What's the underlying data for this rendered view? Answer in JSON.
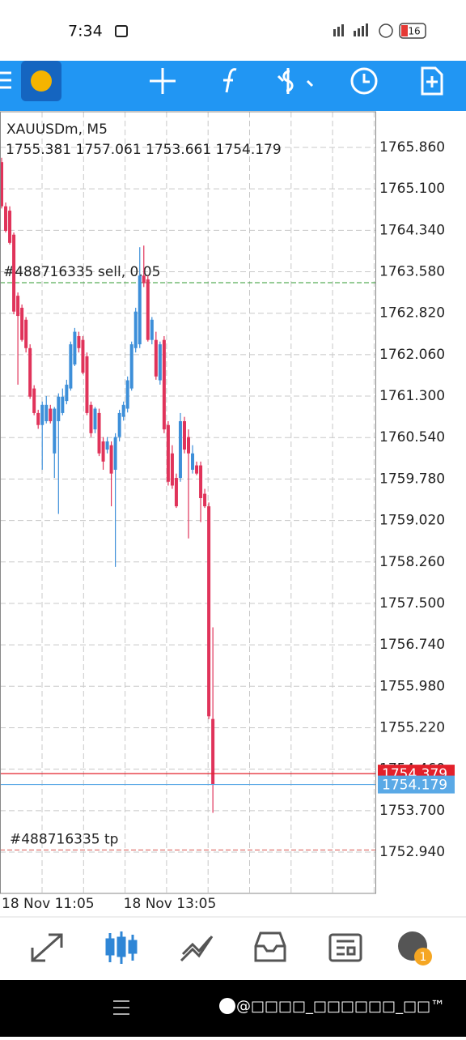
{
  "status_bar": {
    "time": "7:34",
    "battery": "16"
  },
  "notification_badge": "1",
  "watermark": "@□□□□_□□□□□□_□□™",
  "chart_data": {
    "type": "candlestick",
    "title": "XAUUSDm, M5",
    "subtitle": "1755.381 1757.061 1753.661 1754.179",
    "bull_color": "#3d8fd9",
    "bear_color": "#e0335a",
    "grid": true,
    "ylim": [
      1752.183,
      1766.513
    ],
    "yticks": [
      {
        "value": 1765.86,
        "label": "1765.860"
      },
      {
        "value": 1765.1,
        "label": "1765.100"
      },
      {
        "value": 1764.34,
        "label": "1764.340"
      },
      {
        "value": 1763.58,
        "label": "1763.580"
      },
      {
        "value": 1762.82,
        "label": "1762.820"
      },
      {
        "value": 1762.06,
        "label": "1762.060"
      },
      {
        "value": 1761.3,
        "label": "1761.300"
      },
      {
        "value": 1760.54,
        "label": "1760.540"
      },
      {
        "value": 1759.78,
        "label": "1759.780"
      },
      {
        "value": 1759.02,
        "label": "1759.020"
      },
      {
        "value": 1758.26,
        "label": "1758.260"
      },
      {
        "value": 1757.5,
        "label": "1757.500"
      },
      {
        "value": 1756.74,
        "label": "1756.740"
      },
      {
        "value": 1755.98,
        "label": "1755.980"
      },
      {
        "value": 1755.22,
        "label": "1755.220"
      },
      {
        "value": 1754.46,
        "label": "1754.460"
      },
      {
        "value": 1753.7,
        "label": "1753.700"
      },
      {
        "value": 1752.94,
        "label": "1752.940"
      }
    ],
    "xlim": [
      -0.4,
      92.2
    ],
    "xticks": [
      {
        "value": 0,
        "label": "18 Nov 11:05"
      },
      {
        "value": 30,
        "label": "18 Nov 13:05"
      }
    ],
    "candles": [
      [
        1765.59,
        1765.67,
        1764.74,
        1764.78
      ],
      [
        1764.78,
        1764.85,
        1764.3,
        1764.33
      ],
      [
        1764.7,
        1764.78,
        1764.08,
        1764.11
      ],
      [
        1764.26,
        1764.3,
        1762.8,
        1762.85
      ],
      [
        1763.14,
        1763.2,
        1761.51,
        1762.77
      ],
      [
        1762.92,
        1762.98,
        1762.3,
        1762.33
      ],
      [
        1762.7,
        1762.75,
        1762.1,
        1762.18
      ],
      [
        1762.18,
        1762.25,
        1761.25,
        1761.29
      ],
      [
        1761.44,
        1761.5,
        1760.95,
        1760.99
      ],
      [
        1760.99,
        1761.05,
        1760.7,
        1760.77
      ],
      [
        1760.77,
        1761.2,
        1759.95,
        1761.14
      ],
      [
        1760.84,
        1761.3,
        1760.8,
        1761.14
      ],
      [
        1761.07,
        1761.14,
        1760.8,
        1760.84
      ],
      [
        1760.25,
        1761.1,
        1759.8,
        1761.07
      ],
      [
        1760.84,
        1761.35,
        1759.14,
        1761.29
      ],
      [
        1760.99,
        1761.44,
        1760.95,
        1761.29
      ],
      [
        1761.21,
        1761.6,
        1761.15,
        1761.51
      ],
      [
        1761.44,
        1762.3,
        1761.4,
        1762.25
      ],
      [
        1761.88,
        1762.55,
        1761.85,
        1762.48
      ],
      [
        1762.4,
        1762.48,
        1762.1,
        1762.18
      ],
      [
        1762.33,
        1762.4,
        1761.7,
        1761.73
      ],
      [
        1762.03,
        1762.1,
        1760.95,
        1760.99
      ],
      [
        1761.14,
        1761.2,
        1760.55,
        1760.62
      ],
      [
        1760.69,
        1761.1,
        1760.62,
        1761.07
      ],
      [
        1760.99,
        1761.07,
        1760.2,
        1760.25
      ],
      [
        1760.47,
        1760.55,
        1759.95,
        1760.1
      ],
      [
        1760.32,
        1760.55,
        1760.25,
        1760.47
      ],
      [
        1760.4,
        1760.47,
        1759.28,
        1759.88
      ],
      [
        1759.95,
        1760.62,
        1758.17,
        1760.55
      ],
      [
        1760.55,
        1761.05,
        1760.47,
        1760.99
      ],
      [
        1760.92,
        1761.2,
        1760.85,
        1761.14
      ],
      [
        1761.07,
        1761.66,
        1761.0,
        1761.59
      ],
      [
        1761.44,
        1762.3,
        1761.4,
        1762.25
      ],
      [
        1762.18,
        1762.92,
        1762.1,
        1762.85
      ],
      [
        1762.25,
        1764.03,
        1762.18,
        1763.51
      ],
      [
        1763.51,
        1764.06,
        1763.3,
        1763.37
      ],
      [
        1763.44,
        1763.51,
        1762.3,
        1762.33
      ],
      [
        1762.33,
        1762.75,
        1762.25,
        1762.7
      ],
      [
        1762.33,
        1762.48,
        1761.6,
        1761.66
      ],
      [
        1761.59,
        1762.3,
        1761.51,
        1762.25
      ],
      [
        1762.33,
        1762.4,
        1760.62,
        1760.69
      ],
      [
        1760.77,
        1760.84,
        1759.66,
        1759.73
      ],
      [
        1760.25,
        1760.4,
        1759.6,
        1759.66
      ],
      [
        1759.8,
        1759.88,
        1759.25,
        1759.28
      ],
      [
        1759.8,
        1760.99,
        1759.73,
        1760.84
      ],
      [
        1760.84,
        1760.92,
        1760.25,
        1760.32
      ],
      [
        1760.55,
        1760.69,
        1758.69,
        1760.25
      ],
      [
        1759.95,
        1760.4,
        1759.88,
        1760.25
      ],
      [
        1760.03,
        1760.1,
        1759.85,
        1759.88
      ],
      [
        1760.03,
        1760.1,
        1758.99,
        1759.43
      ],
      [
        1759.51,
        1759.6,
        1759.25,
        1759.28
      ],
      [
        1759.28,
        1759.35,
        1755.38,
        1755.43
      ],
      [
        1755.381,
        1757.061,
        1753.661,
        1754.179
      ]
    ],
    "price_lines": [
      {
        "value": 1754.379,
        "label": "1754.379",
        "color": "#e3202a"
      },
      {
        "value": 1754.179,
        "label": "1754.179",
        "color": "#5aa9e6"
      }
    ],
    "order_lines": [
      {
        "value": 1763.38,
        "label": "#488716335 sell, 0.05",
        "color": "#2f9a2f"
      },
      {
        "value": 1752.98,
        "label": "#488716335 tp",
        "color": "#d9534f"
      }
    ]
  }
}
